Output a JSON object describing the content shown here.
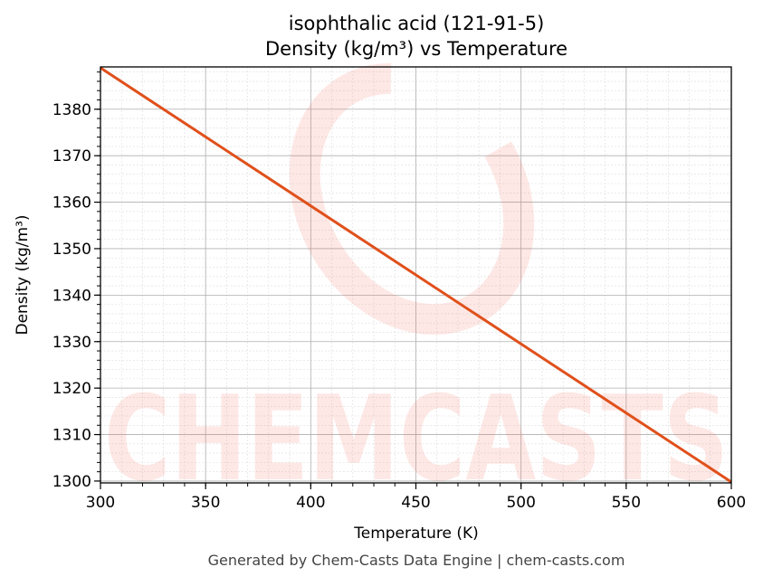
{
  "chart_data": {
    "type": "line",
    "title": "isophthalic acid (121-91-5)",
    "subtitle": "Density (kg/m³) vs Temperature",
    "xlabel": "Temperature (K)",
    "ylabel": "Density (kg/m³)",
    "xlim": [
      300,
      600
    ],
    "ylim": [
      1299.6,
      1389.1
    ],
    "xticks": [
      300,
      350,
      400,
      450,
      500,
      550,
      600
    ],
    "yticks": [
      1300,
      1310,
      1320,
      1330,
      1340,
      1350,
      1360,
      1370,
      1380
    ],
    "grid": true,
    "series": [
      {
        "name": "Density",
        "color": "#e0501b",
        "x": [
          300,
          600
        ],
        "y": [
          1388.9,
          1299.8
        ]
      }
    ]
  },
  "watermark": "CHEMCASTS",
  "footer": "Generated by Chem-Casts Data Engine | chem-casts.com"
}
